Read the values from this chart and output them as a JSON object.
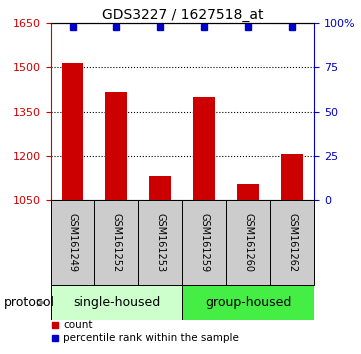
{
  "title": "GDS3227 / 1627518_at",
  "samples": [
    "GSM161249",
    "GSM161252",
    "GSM161253",
    "GSM161259",
    "GSM161260",
    "GSM161262"
  ],
  "bar_values": [
    1515,
    1415,
    1130,
    1400,
    1105,
    1205
  ],
  "percentile_values": [
    98,
    98,
    98,
    98,
    98,
    98
  ],
  "ylim_left": [
    1050,
    1650
  ],
  "ylim_right": [
    0,
    100
  ],
  "yticks_left": [
    1050,
    1200,
    1350,
    1500,
    1650
  ],
  "yticks_right": [
    0,
    25,
    50,
    75,
    100
  ],
  "bar_color": "#cc0000",
  "dot_color": "#0000cc",
  "group1": {
    "label": "single-housed",
    "indices": [
      0,
      1,
      2
    ]
  },
  "group2": {
    "label": "group-housed",
    "indices": [
      3,
      4,
      5
    ]
  },
  "group_color1": "#ccffcc",
  "group_color2": "#44ee44",
  "gray_color": "#cccccc",
  "protocol_label": "protocol",
  "legend_bar_label": "count",
  "legend_dot_label": "percentile rank within the sample",
  "left_axis_color": "#cc0000",
  "right_axis_color": "#0000cc",
  "bar_width": 0.5,
  "title_fontsize": 10,
  "tick_fontsize": 8,
  "sample_fontsize": 7,
  "group_fontsize": 9,
  "legend_fontsize": 7.5,
  "protocol_fontsize": 9
}
